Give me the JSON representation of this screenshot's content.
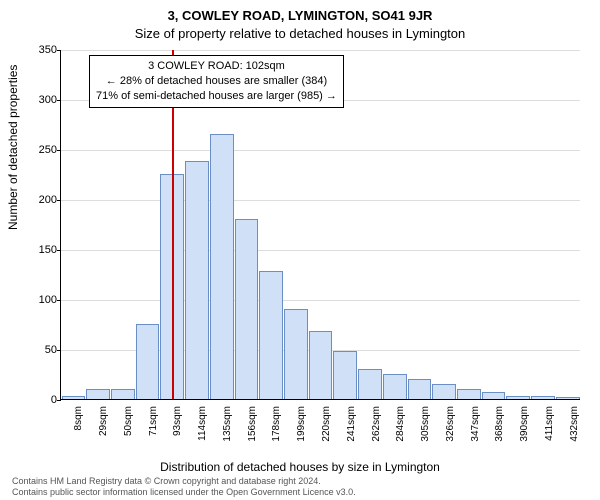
{
  "header": {
    "line1": "3, COWLEY ROAD, LYMINGTON, SO41 9JR",
    "line2": "Size of property relative to detached houses in Lymington"
  },
  "chart": {
    "type": "histogram",
    "ylabel": "Number of detached properties",
    "xlabel": "Distribution of detached houses by size in Lymington",
    "ylim": [
      0,
      350
    ],
    "ytick_step": 50,
    "yticks": [
      0,
      50,
      100,
      150,
      200,
      250,
      300,
      350
    ],
    "xticks": [
      "8sqm",
      "29sqm",
      "50sqm",
      "71sqm",
      "93sqm",
      "114sqm",
      "135sqm",
      "156sqm",
      "178sqm",
      "199sqm",
      "220sqm",
      "241sqm",
      "262sqm",
      "284sqm",
      "305sqm",
      "326sqm",
      "347sqm",
      "368sqm",
      "390sqm",
      "411sqm",
      "432sqm"
    ],
    "values": [
      3,
      10,
      10,
      75,
      225,
      238,
      265,
      180,
      128,
      90,
      68,
      48,
      30,
      25,
      20,
      15,
      10,
      7,
      3,
      3,
      2
    ],
    "bar_fill": "#cfe0f7",
    "bar_stroke": "#6a8fc5",
    "grid_color": "#dddddd",
    "background_color": "#ffffff",
    "reference_line": {
      "x_index": 4.5,
      "color": "#cc0000"
    },
    "annotation": {
      "line1": "3 COWLEY ROAD: 102sqm",
      "line2": "← 28% of detached houses are smaller (384)",
      "line3": "71% of semi-detached houses are larger (985) →",
      "border_color": "#000000",
      "bg_color": "#ffffff",
      "fontsize": 11
    },
    "title_fontsize": 13,
    "label_fontsize": 12,
    "tick_fontsize": 11
  },
  "attribution": {
    "line1": "Contains HM Land Registry data © Crown copyright and database right 2024.",
    "line2": "Contains public sector information licensed under the Open Government Licence v3.0."
  }
}
